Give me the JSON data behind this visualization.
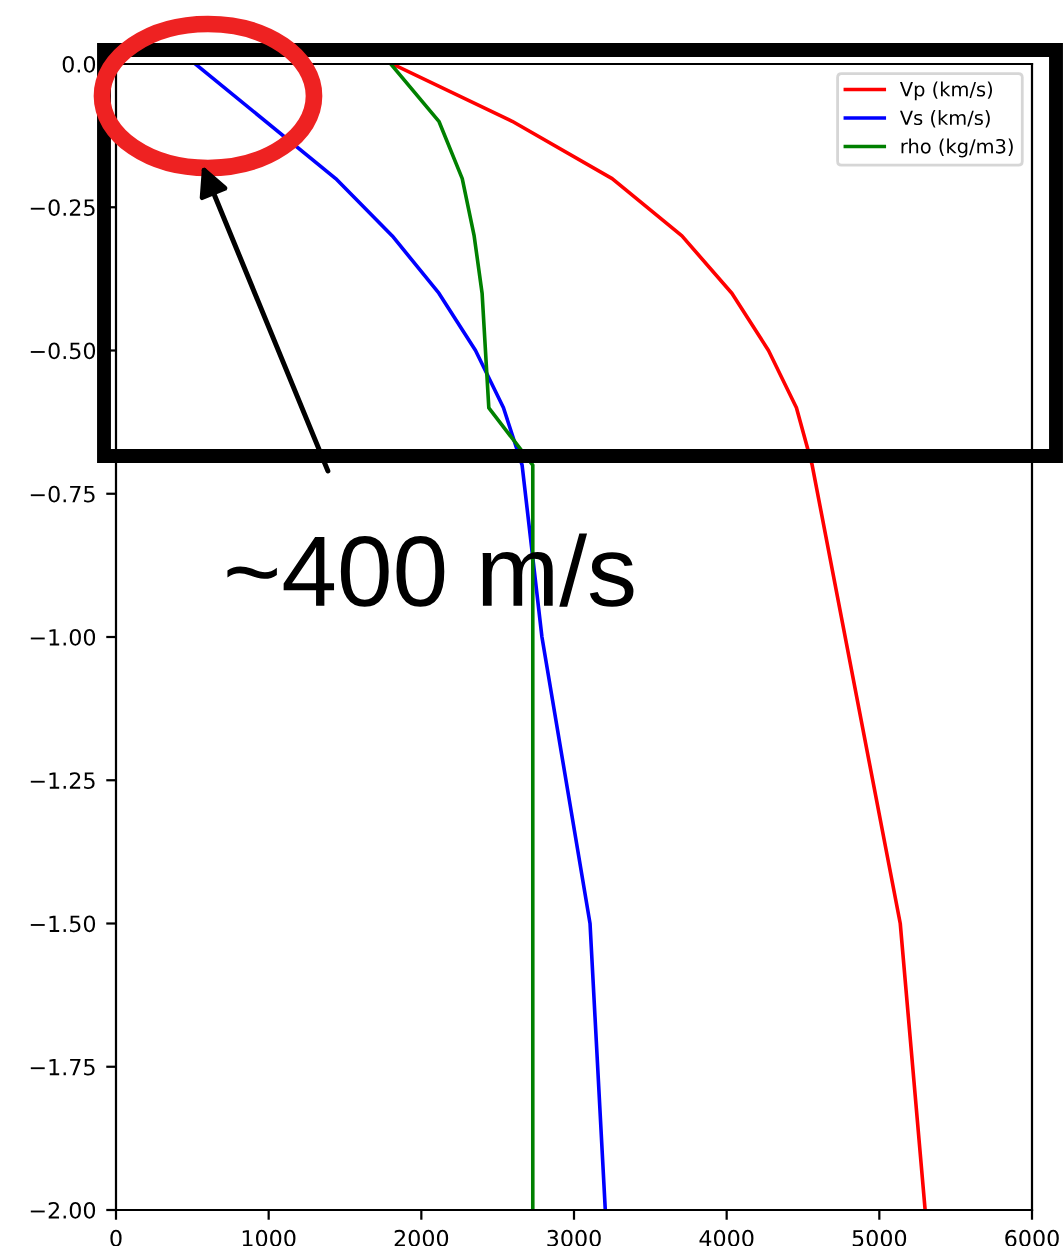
{
  "chart_data": {
    "type": "line",
    "xlim": [
      0,
      6000
    ],
    "xticks": [
      0,
      1000,
      2000,
      3000,
      4000,
      5000,
      6000
    ],
    "ylim": [
      -2,
      0
    ],
    "yticks": [
      {
        "value": 0,
        "label": "0.0"
      },
      {
        "value": -0.25,
        "label": "−0.25"
      },
      {
        "value": -0.5,
        "label": "−0.50"
      },
      {
        "value": -0.75,
        "label": "−0.75"
      },
      {
        "value": -1,
        "label": "−1.00"
      },
      {
        "value": -1.25,
        "label": "−1.25"
      },
      {
        "value": -1.5,
        "label": "−1.50"
      },
      {
        "value": -1.75,
        "label": "−1.75"
      },
      {
        "value": -2,
        "label": "−2.00"
      }
    ],
    "grid": false,
    "legend": "top right",
    "marker": "none",
    "line_style": "solid",
    "series": [
      {
        "name": "Vp (km/s)",
        "color": "#ff0000",
        "x": [
          1810,
          2595,
          3250,
          3707,
          4034,
          4274,
          4457,
          4560,
          5137,
          5300
        ],
        "values": [
          0,
          -0.1,
          -0.2,
          -0.3,
          -0.4,
          -0.5,
          -0.6,
          -0.7,
          -1.5,
          -2.0
        ]
      },
      {
        "name": "Vs (km/s)",
        "color": "#0000ff",
        "x": [
          520,
          1439,
          1810,
          2115,
          2355,
          2538,
          2660,
          2790,
          3105,
          3205
        ],
        "values": [
          0,
          -0.2,
          -0.3,
          -0.4,
          -0.5,
          -0.6,
          -0.7,
          -1.0,
          -1.5,
          -2.0
        ]
      },
      {
        "name": "rho (kg/m3)",
        "color": "#008000",
        "x": [
          1800,
          2115,
          2268,
          2346,
          2398,
          2442,
          2730,
          2730
        ],
        "values": [
          0,
          -0.1,
          -0.2,
          -0.3,
          -0.4,
          -0.6,
          -0.7,
          -2.0
        ]
      }
    ],
    "annotations": [
      "~400 m/s"
    ]
  }
}
